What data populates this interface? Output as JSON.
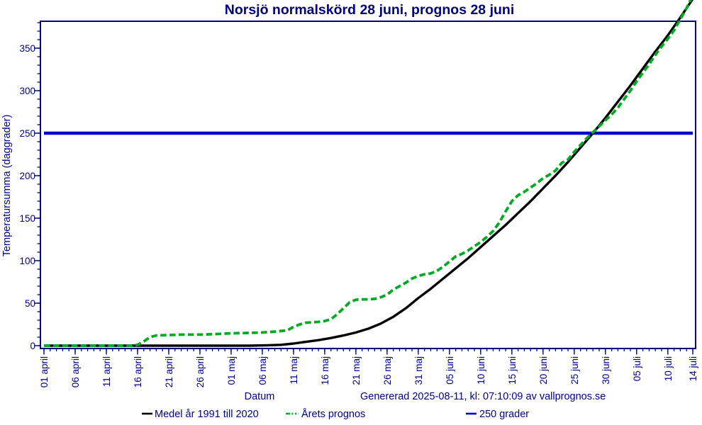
{
  "title": "Norsjö normalskörd 28 juni, prognos 28 juni",
  "footer": {
    "generated": "Genererad 2025-08-11, kl: 07:10:09 av vallprognos.se"
  },
  "legend": [
    {
      "label": "Medel år 1991 till 2020",
      "color": "#000000",
      "dash": "none"
    },
    {
      "label": "Årets prognos",
      "color": "#00AA22",
      "dash": "dash-dot-dot"
    },
    {
      "label": "250 grader",
      "color": "#0000CC",
      "dash": "none"
    }
  ],
  "colors": {
    "frame": "#000080",
    "text": "#000080",
    "medel_line": "#000000",
    "prognos_line": "#00AA22",
    "threshold_line": "#0000CC",
    "background": "#ffffff"
  },
  "chart_data": {
    "type": "line",
    "title": "Norsjö normalskörd 28 juni, prognos 28 juni",
    "xlabel": "Datum",
    "ylabel": "Temperatursumma (daggrader)",
    "x_unit": "days since 01 april",
    "x_range_days": [
      0,
      104
    ],
    "ylim": [
      0,
      380
    ],
    "yticks_major": [
      0,
      50,
      100,
      150,
      200,
      250,
      300,
      350
    ],
    "ytick_minor_step": 10,
    "ytick_minor_max": 380,
    "xtick_minor_step_days": 1,
    "grid": false,
    "legend_position": "bottom",
    "x_ticks": [
      {
        "label": "01 april",
        "day": 0
      },
      {
        "label": "06 april",
        "day": 5
      },
      {
        "label": "11 april",
        "day": 10
      },
      {
        "label": "16 april",
        "day": 15
      },
      {
        "label": "21 april",
        "day": 20
      },
      {
        "label": "26 april",
        "day": 25
      },
      {
        "label": "01 maj",
        "day": 30
      },
      {
        "label": "06 maj",
        "day": 35
      },
      {
        "label": "11 maj",
        "day": 40
      },
      {
        "label": "16 maj",
        "day": 45
      },
      {
        "label": "21 maj",
        "day": 50
      },
      {
        "label": "26 maj",
        "day": 55
      },
      {
        "label": "31 maj",
        "day": 60
      },
      {
        "label": "05 juni",
        "day": 65
      },
      {
        "label": "10 juni",
        "day": 70
      },
      {
        "label": "15 juni",
        "day": 75
      },
      {
        "label": "20 juni",
        "day": 80
      },
      {
        "label": "25 juni",
        "day": 85
      },
      {
        "label": "30 juni",
        "day": 90
      },
      {
        "label": "05 juli",
        "day": 95
      },
      {
        "label": "10 juli",
        "day": 100
      },
      {
        "label": "14 juli",
        "day": 104
      }
    ],
    "threshold": {
      "name": "250 grader",
      "value": 250,
      "color": "#0000CC"
    },
    "series": [
      {
        "name": "Medel år 1991 till 2020",
        "color": "#000000",
        "style": "solid",
        "points": [
          [
            0,
            0
          ],
          [
            5,
            0
          ],
          [
            10,
            0
          ],
          [
            15,
            0
          ],
          [
            20,
            0
          ],
          [
            25,
            0
          ],
          [
            30,
            0
          ],
          [
            33,
            0
          ],
          [
            36,
            0.5
          ],
          [
            38,
            1
          ],
          [
            40,
            2.5
          ],
          [
            42,
            4.5
          ],
          [
            44,
            6.5
          ],
          [
            46,
            9
          ],
          [
            48,
            12
          ],
          [
            50,
            15.5
          ],
          [
            52,
            20
          ],
          [
            54,
            26
          ],
          [
            56,
            34
          ],
          [
            58,
            44
          ],
          [
            60,
            56
          ],
          [
            62,
            67
          ],
          [
            64,
            79
          ],
          [
            66,
            91
          ],
          [
            68,
            103
          ],
          [
            70,
            116
          ],
          [
            72,
            129
          ],
          [
            74,
            142
          ],
          [
            76,
            156
          ],
          [
            78,
            170
          ],
          [
            80,
            185
          ],
          [
            82,
            200
          ],
          [
            84,
            216
          ],
          [
            86,
            233
          ],
          [
            88,
            250
          ],
          [
            90,
            268
          ],
          [
            92,
            287
          ],
          [
            94,
            306
          ],
          [
            96,
            326
          ],
          [
            98,
            346
          ],
          [
            100,
            365
          ],
          [
            102,
            386
          ],
          [
            104,
            408
          ]
        ]
      },
      {
        "name": "Årets prognos",
        "color": "#00AA22",
        "style": "dashed",
        "points": [
          [
            0,
            0
          ],
          [
            4,
            0
          ],
          [
            8,
            0
          ],
          [
            12,
            0
          ],
          [
            14,
            0
          ],
          [
            15,
            1
          ],
          [
            16,
            5
          ],
          [
            17,
            10
          ],
          [
            18,
            12
          ],
          [
            20,
            12.5
          ],
          [
            22,
            13
          ],
          [
            25,
            13
          ],
          [
            27,
            13.5
          ],
          [
            30,
            14.5
          ],
          [
            33,
            15
          ],
          [
            35,
            15.5
          ],
          [
            37,
            16.5
          ],
          [
            39,
            18
          ],
          [
            40,
            22
          ],
          [
            41,
            25
          ],
          [
            42,
            27
          ],
          [
            43,
            27.5
          ],
          [
            44,
            28
          ],
          [
            45,
            29
          ],
          [
            46,
            31
          ],
          [
            47,
            37
          ],
          [
            48,
            44
          ],
          [
            49,
            51
          ],
          [
            50,
            54
          ],
          [
            51,
            54.5
          ],
          [
            52,
            54.5
          ],
          [
            53,
            55
          ],
          [
            54,
            57
          ],
          [
            55,
            60
          ],
          [
            56,
            66
          ],
          [
            57,
            70
          ],
          [
            58,
            74
          ],
          [
            59,
            79
          ],
          [
            60,
            82
          ],
          [
            61,
            84
          ],
          [
            62,
            85
          ],
          [
            63,
            88
          ],
          [
            64,
            93
          ],
          [
            65,
            99
          ],
          [
            66,
            105
          ],
          [
            67,
            108
          ],
          [
            68,
            112
          ],
          [
            69,
            117
          ],
          [
            70,
            122
          ],
          [
            71,
            128
          ],
          [
            72,
            135
          ],
          [
            73,
            145
          ],
          [
            74,
            158
          ],
          [
            75,
            170
          ],
          [
            76,
            177
          ],
          [
            77,
            181
          ],
          [
            78,
            186
          ],
          [
            79,
            191
          ],
          [
            80,
            197
          ],
          [
            81,
            201
          ],
          [
            82,
            206
          ],
          [
            83,
            215
          ],
          [
            84,
            219
          ],
          [
            85,
            228
          ],
          [
            86,
            236
          ],
          [
            87,
            244
          ],
          [
            88,
            251
          ],
          [
            89,
            258
          ],
          [
            90,
            265
          ],
          [
            91,
            272
          ],
          [
            92,
            280
          ],
          [
            93,
            290
          ],
          [
            94,
            300
          ],
          [
            95,
            311
          ],
          [
            96,
            321
          ],
          [
            97,
            331
          ],
          [
            98,
            342
          ],
          [
            99,
            352
          ],
          [
            100,
            361
          ],
          [
            101,
            371
          ],
          [
            102,
            384
          ],
          [
            103,
            397
          ],
          [
            104,
            412
          ]
        ]
      }
    ]
  }
}
